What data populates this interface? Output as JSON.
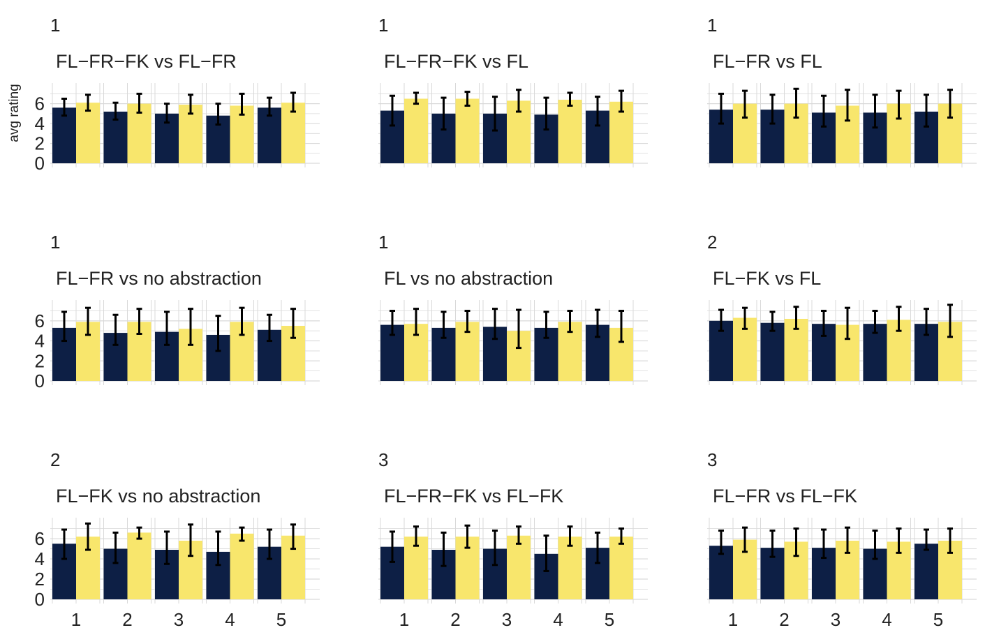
{
  "colors": {
    "series_a": "#0d1f45",
    "series_b": "#f8e66c",
    "error_bar": "#000000",
    "grid": "#d9d9d9",
    "text": "#222222"
  },
  "ylabel": "avg rating",
  "y_ticks": [
    "0",
    "2",
    "4",
    "6"
  ],
  "x_ticks": [
    "1",
    "2",
    "3",
    "4",
    "5"
  ],
  "chart_data": [
    {
      "type": "bar",
      "tag": "1",
      "title": "FL−FR−FK vs FL−FR",
      "categories": [
        "1",
        "2",
        "3",
        "4",
        "5"
      ],
      "ylim": [
        0,
        7.8
      ],
      "series": [
        {
          "values": [
            5.6,
            5.2,
            5.0,
            4.8,
            5.6
          ],
          "err_low": [
            4.8,
            4.4,
            4.1,
            3.9,
            4.8
          ],
          "err_high": [
            6.5,
            6.1,
            6.0,
            6.0,
            6.6
          ]
        },
        {
          "values": [
            6.1,
            6.0,
            5.9,
            5.8,
            6.1
          ],
          "err_low": [
            5.3,
            5.1,
            5.0,
            4.9,
            5.2
          ],
          "err_high": [
            6.9,
            7.0,
            6.9,
            7.0,
            7.1
          ]
        }
      ]
    },
    {
      "type": "bar",
      "tag": "1",
      "title": "FL−FR−FK vs FL",
      "categories": [
        "1",
        "2",
        "3",
        "4",
        "5"
      ],
      "ylim": [
        0,
        7.8
      ],
      "series": [
        {
          "values": [
            5.3,
            5.0,
            5.0,
            4.9,
            5.3
          ],
          "err_low": [
            3.8,
            3.4,
            3.3,
            3.4,
            3.8
          ],
          "err_high": [
            6.8,
            6.6,
            6.7,
            6.6,
            6.7
          ]
        },
        {
          "values": [
            6.5,
            6.5,
            6.3,
            6.4,
            6.2
          ],
          "err_low": [
            6.0,
            5.8,
            5.2,
            5.8,
            5.2
          ],
          "err_high": [
            7.1,
            7.2,
            7.4,
            7.1,
            7.3
          ]
        }
      ]
    },
    {
      "type": "bar",
      "tag": "1",
      "title": "FL−FR vs FL",
      "categories": [
        "1",
        "2",
        "3",
        "4",
        "5"
      ],
      "ylim": [
        0,
        7.8
      ],
      "series": [
        {
          "values": [
            5.4,
            5.4,
            5.1,
            5.1,
            5.2
          ],
          "err_low": [
            4.0,
            4.0,
            3.7,
            3.6,
            3.7
          ],
          "err_high": [
            7.0,
            6.9,
            6.8,
            6.9,
            6.9
          ]
        },
        {
          "values": [
            6.0,
            6.0,
            5.8,
            6.0,
            6.0
          ],
          "err_low": [
            4.6,
            4.6,
            4.3,
            4.5,
            4.6
          ],
          "err_high": [
            7.3,
            7.5,
            7.4,
            7.3,
            7.4
          ]
        }
      ]
    },
    {
      "type": "bar",
      "tag": "1",
      "title": "FL−FR vs no abstraction",
      "categories": [
        "1",
        "2",
        "3",
        "4",
        "5"
      ],
      "ylim": [
        0,
        7.8
      ],
      "series": [
        {
          "values": [
            5.3,
            4.8,
            4.9,
            4.6,
            5.1
          ],
          "err_low": [
            4.0,
            3.6,
            3.6,
            3.0,
            4.0
          ],
          "err_high": [
            6.9,
            6.6,
            6.9,
            6.5,
            6.6
          ]
        },
        {
          "values": [
            5.9,
            5.9,
            5.2,
            5.9,
            5.5
          ],
          "err_low": [
            4.6,
            4.7,
            3.6,
            4.6,
            4.3
          ],
          "err_high": [
            7.3,
            7.2,
            7.2,
            7.3,
            7.2
          ]
        }
      ]
    },
    {
      "type": "bar",
      "tag": "1",
      "title": "FL vs no abstraction",
      "categories": [
        "1",
        "2",
        "3",
        "4",
        "5"
      ],
      "ylim": [
        0,
        7.8
      ],
      "series": [
        {
          "values": [
            5.6,
            5.3,
            5.4,
            5.3,
            5.6
          ],
          "err_low": [
            4.6,
            4.3,
            4.2,
            4.3,
            4.4
          ],
          "err_high": [
            7.0,
            6.9,
            7.2,
            6.9,
            7.1
          ]
        },
        {
          "values": [
            5.7,
            5.9,
            5.0,
            5.9,
            5.3
          ],
          "err_low": [
            4.6,
            4.9,
            3.3,
            4.9,
            3.9
          ],
          "err_high": [
            7.2,
            7.0,
            7.1,
            7.0,
            7.0
          ]
        }
      ]
    },
    {
      "type": "bar",
      "tag": "2",
      "title": "FL−FK vs FL",
      "categories": [
        "1",
        "2",
        "3",
        "4",
        "5"
      ],
      "ylim": [
        0,
        7.8
      ],
      "series": [
        {
          "values": [
            6.0,
            5.8,
            5.7,
            5.7,
            5.7
          ],
          "err_low": [
            5.0,
            5.0,
            4.5,
            4.8,
            4.6
          ],
          "err_high": [
            7.1,
            6.9,
            7.0,
            7.0,
            7.2
          ]
        },
        {
          "values": [
            6.3,
            6.2,
            5.6,
            6.1,
            5.9
          ],
          "err_low": [
            5.2,
            5.2,
            4.2,
            5.0,
            4.4
          ],
          "err_high": [
            7.3,
            7.4,
            7.3,
            7.4,
            7.6
          ]
        }
      ]
    },
    {
      "type": "bar",
      "tag": "2",
      "title": "FL−FK vs no abstraction",
      "categories": [
        "1",
        "2",
        "3",
        "4",
        "5"
      ],
      "ylim": [
        0,
        7.8
      ],
      "series": [
        {
          "values": [
            5.5,
            5.0,
            4.9,
            4.7,
            5.2
          ],
          "err_low": [
            4.0,
            3.6,
            3.5,
            3.4,
            4.0
          ],
          "err_high": [
            6.9,
            6.6,
            6.7,
            6.7,
            6.9
          ]
        },
        {
          "values": [
            6.2,
            6.6,
            5.8,
            6.5,
            6.3
          ],
          "err_low": [
            4.9,
            6.0,
            4.3,
            5.8,
            5.0
          ],
          "err_high": [
            7.5,
            7.1,
            7.4,
            7.1,
            7.4
          ]
        }
      ]
    },
    {
      "type": "bar",
      "tag": "3",
      "title": "FL−FR−FK vs FL−FK",
      "categories": [
        "1",
        "2",
        "3",
        "4",
        "5"
      ],
      "ylim": [
        0,
        7.8
      ],
      "series": [
        {
          "values": [
            5.2,
            4.9,
            5.0,
            4.5,
            5.1
          ],
          "err_low": [
            3.7,
            3.3,
            3.4,
            2.8,
            3.6
          ],
          "err_high": [
            6.7,
            6.6,
            6.8,
            6.3,
            6.6
          ]
        },
        {
          "values": [
            6.2,
            6.2,
            6.3,
            6.2,
            6.2
          ],
          "err_low": [
            5.3,
            5.1,
            5.5,
            5.3,
            5.5
          ],
          "err_high": [
            7.2,
            7.3,
            7.2,
            7.2,
            7.0
          ]
        }
      ]
    },
    {
      "type": "bar",
      "tag": "3",
      "title": "FL−FR vs FL−FK",
      "categories": [
        "1",
        "2",
        "3",
        "4",
        "5"
      ],
      "ylim": [
        0,
        7.8
      ],
      "series": [
        {
          "values": [
            5.3,
            5.1,
            5.1,
            5.0,
            5.5
          ],
          "err_low": [
            4.5,
            4.2,
            4.1,
            4.0,
            4.9
          ],
          "err_high": [
            6.8,
            6.8,
            6.9,
            6.8,
            6.9
          ]
        },
        {
          "values": [
            5.9,
            5.7,
            5.8,
            5.7,
            5.8
          ],
          "err_low": [
            4.7,
            4.3,
            4.6,
            4.6,
            4.6
          ],
          "err_high": [
            7.1,
            7.0,
            7.1,
            7.0,
            7.0
          ]
        }
      ]
    }
  ]
}
